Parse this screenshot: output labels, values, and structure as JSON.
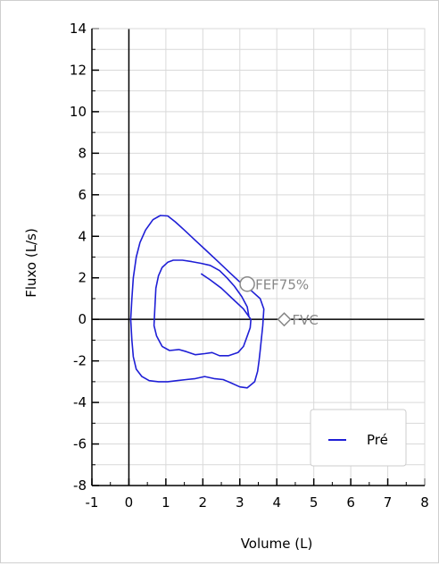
{
  "chart_data": {
    "type": "line",
    "xlabel": "Volume (L)",
    "ylabel": "Fluxo (L/s)",
    "xlim": [
      -1,
      8
    ],
    "ylim": [
      -8,
      14
    ],
    "x_ticks": [
      -1,
      0,
      1,
      2,
      3,
      4,
      5,
      6,
      7,
      8
    ],
    "y_ticks": [
      -8,
      -6,
      -4,
      -2,
      0,
      2,
      4,
      6,
      8,
      10,
      12,
      14
    ],
    "grid": true,
    "legend_position": "bottom-right",
    "colors": {
      "series": "#1f1fd6",
      "marker": "#888888",
      "axis": "#000000",
      "grid": "#d9d9d9"
    },
    "series": [
      {
        "name": "Pré",
        "loops": [
          [
            [
              0.05,
              0.0
            ],
            [
              0.08,
              1.0
            ],
            [
              0.12,
              2.0
            ],
            [
              0.2,
              3.0
            ],
            [
              0.3,
              3.7
            ],
            [
              0.45,
              4.3
            ],
            [
              0.65,
              4.8
            ],
            [
              0.85,
              5.0
            ],
            [
              1.05,
              4.98
            ],
            [
              1.25,
              4.7
            ],
            [
              1.5,
              4.3
            ],
            [
              1.8,
              3.8
            ],
            [
              2.1,
              3.3
            ],
            [
              2.4,
              2.8
            ],
            [
              2.7,
              2.3
            ],
            [
              3.0,
              1.8
            ],
            [
              3.3,
              1.4
            ],
            [
              3.55,
              1.0
            ],
            [
              3.65,
              0.5
            ],
            [
              3.62,
              -0.3
            ],
            [
              3.58,
              -1.0
            ],
            [
              3.55,
              -1.5
            ],
            [
              3.52,
              -2.0
            ],
            [
              3.48,
              -2.5
            ],
            [
              3.4,
              -3.0
            ],
            [
              3.2,
              -3.3
            ],
            [
              3.0,
              -3.25
            ],
            [
              2.75,
              -3.05
            ],
            [
              2.55,
              -2.9
            ],
            [
              2.3,
              -2.85
            ],
            [
              2.05,
              -2.75
            ],
            [
              1.8,
              -2.85
            ],
            [
              1.55,
              -2.9
            ],
            [
              1.3,
              -2.95
            ],
            [
              1.05,
              -3.0
            ],
            [
              0.8,
              -3.0
            ],
            [
              0.55,
              -2.95
            ],
            [
              0.35,
              -2.75
            ],
            [
              0.2,
              -2.4
            ],
            [
              0.12,
              -1.8
            ],
            [
              0.08,
              -1.0
            ],
            [
              0.05,
              0.0
            ]
          ],
          [
            [
              3.25,
              0.1
            ],
            [
              3.2,
              0.6
            ],
            [
              3.05,
              1.1
            ],
            [
              2.85,
              1.6
            ],
            [
              2.65,
              2.0
            ],
            [
              2.45,
              2.35
            ],
            [
              2.2,
              2.6
            ],
            [
              1.95,
              2.7
            ],
            [
              1.7,
              2.78
            ],
            [
              1.45,
              2.85
            ],
            [
              1.2,
              2.85
            ],
            [
              1.05,
              2.75
            ],
            [
              0.9,
              2.5
            ],
            [
              0.8,
              2.1
            ],
            [
              0.73,
              1.5
            ],
            [
              0.7,
              0.5
            ],
            [
              0.68,
              -0.3
            ],
            [
              0.75,
              -0.8
            ],
            [
              0.9,
              -1.3
            ],
            [
              1.1,
              -1.5
            ],
            [
              1.35,
              -1.45
            ],
            [
              1.55,
              -1.55
            ],
            [
              1.8,
              -1.7
            ],
            [
              2.05,
              -1.65
            ],
            [
              2.25,
              -1.6
            ],
            [
              2.45,
              -1.75
            ],
            [
              2.7,
              -1.75
            ],
            [
              2.95,
              -1.6
            ],
            [
              3.1,
              -1.3
            ],
            [
              3.2,
              -0.8
            ],
            [
              3.28,
              -0.4
            ],
            [
              3.3,
              0.0
            ],
            [
              3.1,
              0.5
            ],
            [
              2.8,
              1.0
            ],
            [
              2.5,
              1.5
            ],
            [
              2.2,
              1.9
            ],
            [
              1.95,
              2.2
            ]
          ]
        ]
      }
    ],
    "markers": [
      {
        "label": "FEF75%",
        "x": 3.2,
        "y": 1.7,
        "shape": "circle"
      },
      {
        "label": "FVC",
        "x": 4.2,
        "y": 0.0,
        "shape": "diamond"
      }
    ]
  }
}
